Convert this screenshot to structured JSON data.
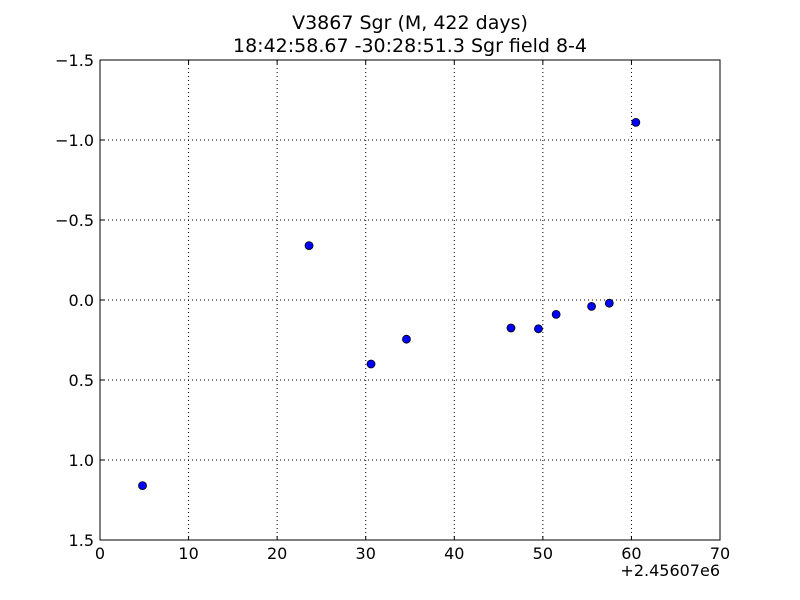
{
  "chart_data": {
    "type": "scatter",
    "title_line1": "V3867 Sgr  (M, 422 days)",
    "title_line2": "18:42:58.67 -30:28:51.3 Sgr field 8-4",
    "xlabel": "",
    "ylabel": "",
    "x_offset_label": "+2.45607e6",
    "xlim": [
      0,
      70
    ],
    "ylim": [
      1.5,
      -1.5
    ],
    "y_inverted": true,
    "grid": true,
    "x_ticks": [
      0,
      10,
      20,
      30,
      40,
      50,
      60,
      70
    ],
    "x_tick_labels": [
      "0",
      "10",
      "20",
      "30",
      "40",
      "50",
      "60",
      "70"
    ],
    "y_ticks": [
      -1.5,
      -1.0,
      -0.5,
      0.0,
      0.5,
      1.0,
      1.5
    ],
    "y_tick_labels": [
      "−1.5",
      "−1.0",
      "−0.5",
      "0.0",
      "0.5",
      "1.0",
      "1.5"
    ],
    "marker_color": "#0000ff",
    "series": [
      {
        "x": [
          4.8,
          23.6,
          30.6,
          34.6,
          46.4,
          49.5,
          51.5,
          55.5,
          57.5,
          60.5
        ],
        "y": [
          1.16,
          -0.34,
          0.4,
          0.245,
          0.175,
          0.18,
          0.09,
          0.04,
          0.02,
          -1.11
        ]
      }
    ]
  }
}
